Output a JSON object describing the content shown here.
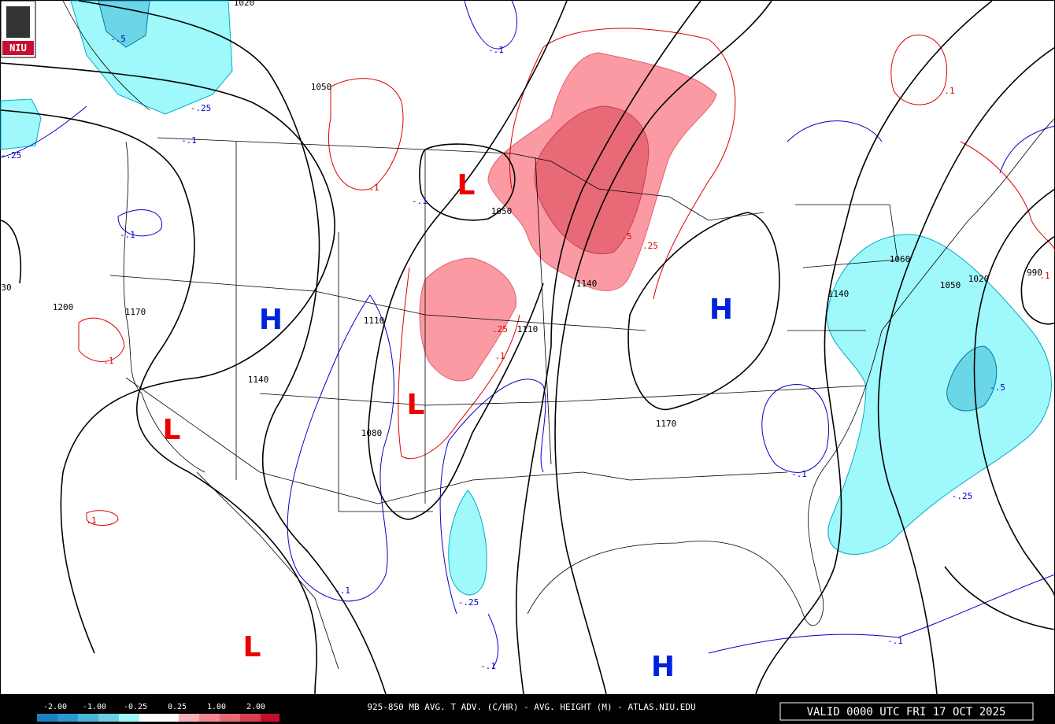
{
  "title": "925-850 MB AVG. T ADV. (C/HR) - AVG. HEIGHT (M) - ATLAS.NIU.EDU",
  "valid_time": "VALID 0000 UTC FRI 17 OCT 2025",
  "logo": "NIU",
  "legend_labels": [
    "-2.00",
    "-1.00",
    "-0.25",
    "0.25",
    "1.00",
    "2.00"
  ],
  "height_labels": [
    "1020",
    "1050",
    "1050",
    "1140",
    "1200",
    "1170",
    "1140",
    "1110",
    "1110",
    "1080",
    "1170",
    "1140",
    "1060",
    "1050",
    "1020",
    "990",
    "30"
  ],
  "warm_labels": [
    ".1",
    ".1",
    ".25",
    ".1",
    ".5",
    ".25",
    ".1",
    ".1",
    ".1"
  ],
  "cold_labels": [
    "-.5",
    "-.25",
    "-.1",
    "-.1",
    "-.1",
    "-.1",
    "-.25",
    "-.1",
    "-.25",
    "-.1",
    "-.25",
    "-.5",
    "-.1",
    "-.1"
  ],
  "highs": [
    "H",
    "H",
    "H"
  ],
  "lows": [
    "L",
    "L",
    "L",
    "L"
  ]
}
